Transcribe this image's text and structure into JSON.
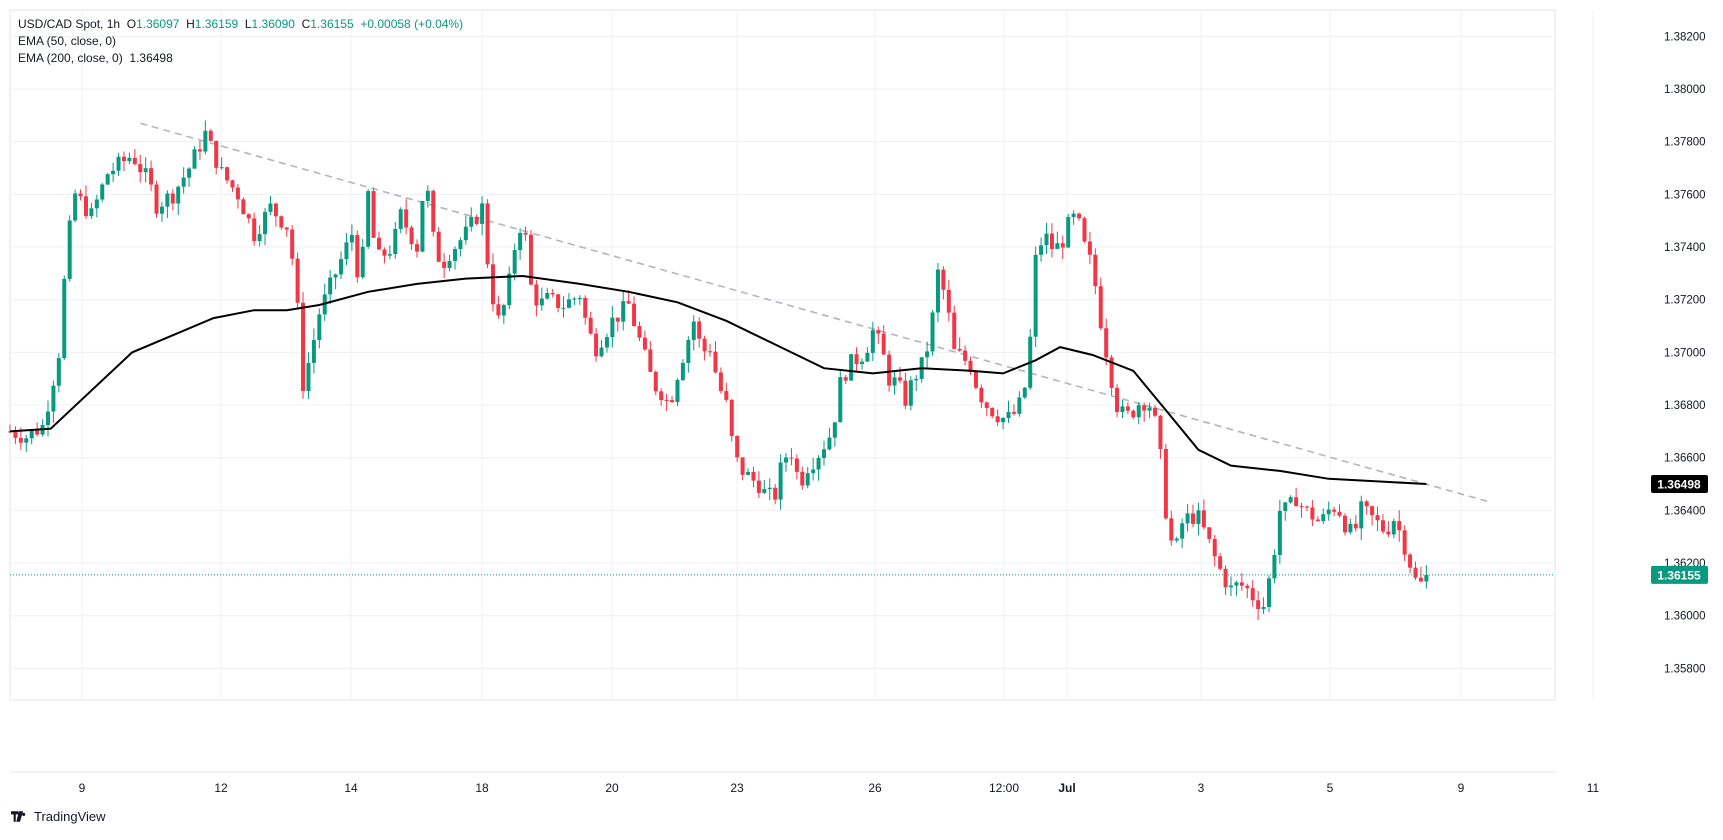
{
  "header": {
    "symbol": "USD/CAD Spot, 1h",
    "ohlc": [
      {
        "label": "O",
        "value": "1.36097"
      },
      {
        "label": "H",
        "value": "1.36159"
      },
      {
        "label": "L",
        "value": "1.36090"
      },
      {
        "label": "C",
        "value": "1.36155"
      }
    ],
    "change": "+0.00058 (+0.04%)",
    "indicators": [
      {
        "label": "EMA (50, close, 0)",
        "value": ""
      },
      {
        "label": "EMA (200, close, 0)",
        "value": "1.36498"
      }
    ]
  },
  "brand": {
    "name": "TradingView",
    "icon": "tradingview-logo-icon"
  },
  "colors": {
    "up": "#089981",
    "down": "#f23645",
    "ema": "#000000",
    "trend": "#b2b5be",
    "grid": "#eef0f3",
    "text": "#131722"
  },
  "chart_data": {
    "type": "candlestick",
    "symbol": "USD/CAD Spot",
    "interval": "1h",
    "ylim": [
      1.3568,
      1.383
    ],
    "y_ticks": [
      "1.38200",
      "1.38000",
      "1.37800",
      "1.37600",
      "1.37400",
      "1.37200",
      "1.37000",
      "1.36800",
      "1.36600",
      "1.36400",
      "1.36200",
      "1.36000",
      "1.35800"
    ],
    "x_ticks": [
      "9",
      "12",
      "14",
      "18",
      "20",
      "23",
      "26",
      "12:00",
      "Jul",
      "3",
      "5",
      "9",
      "11"
    ],
    "price_labels": [
      {
        "name": "EMA 200",
        "value": "1.36498"
      },
      {
        "name": "Last",
        "value": "1.36155"
      }
    ],
    "last_price": 1.36155,
    "price_path": [
      [
        0,
        1.367
      ],
      [
        2,
        1.3668
      ],
      [
        4,
        1.3672
      ],
      [
        5,
        1.3685
      ],
      [
        6,
        1.37
      ],
      [
        7,
        1.374
      ],
      [
        8,
        1.376
      ],
      [
        10,
        1.3752
      ],
      [
        12,
        1.3768
      ],
      [
        15,
        1.3775
      ],
      [
        17,
        1.3765
      ],
      [
        18,
        1.3756
      ],
      [
        20,
        1.376
      ],
      [
        22,
        1.377
      ],
      [
        24,
        1.3783
      ],
      [
        26,
        1.3768
      ],
      [
        28,
        1.376
      ],
      [
        30,
        1.3745
      ],
      [
        32,
        1.3755
      ],
      [
        34,
        1.3748
      ],
      [
        35,
        1.373
      ],
      [
        36,
        1.3688
      ],
      [
        37,
        1.37
      ],
      [
        38,
        1.3715
      ],
      [
        40,
        1.373
      ],
      [
        42,
        1.3745
      ],
      [
        43,
        1.3725
      ],
      [
        44,
        1.376
      ],
      [
        45,
        1.3735
      ],
      [
        47,
        1.374
      ],
      [
        48,
        1.3752
      ],
      [
        50,
        1.374
      ],
      [
        51,
        1.3768
      ],
      [
        52,
        1.3743
      ],
      [
        53,
        1.3733
      ],
      [
        54,
        1.3738
      ],
      [
        56,
        1.3745
      ],
      [
        58,
        1.3755
      ],
      [
        59,
        1.3725
      ],
      [
        60,
        1.3712
      ],
      [
        61,
        1.372
      ],
      [
        62,
        1.374
      ],
      [
        63,
        1.3752
      ],
      [
        64,
        1.3725
      ],
      [
        65,
        1.3718
      ],
      [
        66,
        1.372
      ],
      [
        68,
        1.3718
      ],
      [
        70,
        1.3722
      ],
      [
        71,
        1.3708
      ],
      [
        72,
        1.3702
      ],
      [
        74,
        1.3712
      ],
      [
        76,
        1.3718
      ],
      [
        77,
        1.3708
      ],
      [
        78,
        1.3698
      ],
      [
        79,
        1.3688
      ],
      [
        80,
        1.3685
      ],
      [
        81,
        1.368
      ],
      [
        82,
        1.3692
      ],
      [
        84,
        1.3712
      ],
      [
        85,
        1.37
      ],
      [
        86,
        1.3702
      ],
      [
        87,
        1.3688
      ],
      [
        88,
        1.368
      ],
      [
        89,
        1.366
      ],
      [
        90,
        1.3655
      ],
      [
        91,
        1.3652
      ],
      [
        92,
        1.365
      ],
      [
        93,
        1.3645
      ],
      [
        94,
        1.3646
      ],
      [
        95,
        1.366
      ],
      [
        96,
        1.3662
      ],
      [
        97,
        1.365
      ],
      [
        98,
        1.3657
      ],
      [
        99,
        1.366
      ],
      [
        101,
        1.367
      ],
      [
        102,
        1.3688
      ],
      [
        103,
        1.3695
      ],
      [
        105,
        1.37
      ],
      [
        106,
        1.3708
      ],
      [
        107,
        1.3702
      ],
      [
        108,
        1.369
      ],
      [
        109,
        1.3688
      ],
      [
        110,
        1.3682
      ],
      [
        111,
        1.369
      ],
      [
        112,
        1.3695
      ],
      [
        113,
        1.3705
      ],
      [
        114,
        1.373
      ],
      [
        115,
        1.372
      ],
      [
        116,
        1.37
      ],
      [
        117,
        1.3698
      ],
      [
        118,
        1.3695
      ],
      [
        119,
        1.3685
      ],
      [
        120,
        1.368
      ],
      [
        121,
        1.3677
      ],
      [
        122,
        1.3675
      ],
      [
        123,
        1.3675
      ],
      [
        124,
        1.368
      ],
      [
        125,
        1.369
      ],
      [
        126,
        1.3735
      ],
      [
        127,
        1.3745
      ],
      [
        128,
        1.374
      ],
      [
        129,
        1.374
      ],
      [
        130,
        1.3748
      ],
      [
        131,
        1.3752
      ],
      [
        132,
        1.374
      ],
      [
        133,
        1.3732
      ],
      [
        134,
        1.3712
      ],
      [
        135,
        1.3695
      ],
      [
        136,
        1.368
      ],
      [
        137,
        1.3675
      ],
      [
        138,
        1.3678
      ],
      [
        139,
        1.3682
      ],
      [
        140,
        1.368
      ],
      [
        141,
        1.367
      ],
      [
        142,
        1.364
      ],
      [
        143,
        1.3622
      ],
      [
        144,
        1.3635
      ],
      [
        145,
        1.3638
      ],
      [
        146,
        1.3637
      ],
      [
        147,
        1.363
      ],
      [
        148,
        1.3622
      ],
      [
        149,
        1.3615
      ],
      [
        150,
        1.361
      ],
      [
        151,
        1.3612
      ],
      [
        152,
        1.361
      ],
      [
        153,
        1.3606
      ],
      [
        154,
        1.3604
      ],
      [
        155,
        1.3618
      ],
      [
        156,
        1.364
      ],
      [
        157,
        1.364
      ],
      [
        158,
        1.3645
      ],
      [
        159,
        1.364
      ],
      [
        160,
        1.3638
      ],
      [
        161,
        1.3635
      ],
      [
        162,
        1.364
      ],
      [
        163,
        1.3642
      ],
      [
        164,
        1.3635
      ],
      [
        165,
        1.363
      ],
      [
        166,
        1.364
      ],
      [
        167,
        1.3638
      ],
      [
        168,
        1.3635
      ],
      [
        169,
        1.3632
      ],
      [
        170,
        1.3637
      ],
      [
        171,
        1.363
      ],
      [
        172,
        1.362
      ],
      [
        173,
        1.361
      ],
      [
        174,
        1.3616
      ]
    ],
    "ema200": [
      [
        0,
        1.367
      ],
      [
        5,
        1.3671
      ],
      [
        15,
        1.37
      ],
      [
        25,
        1.3713
      ],
      [
        30,
        1.3716
      ],
      [
        34,
        1.3716
      ],
      [
        38,
        1.3718
      ],
      [
        44,
        1.3723
      ],
      [
        50,
        1.3726
      ],
      [
        56,
        1.3728
      ],
      [
        63,
        1.3729
      ],
      [
        70,
        1.3726
      ],
      [
        76,
        1.3723
      ],
      [
        82,
        1.3719
      ],
      [
        88,
        1.3712
      ],
      [
        94,
        1.3703
      ],
      [
        100,
        1.3694
      ],
      [
        106,
        1.3692
      ],
      [
        112,
        1.3694
      ],
      [
        118,
        1.3693
      ],
      [
        122,
        1.3692
      ],
      [
        126,
        1.3697
      ],
      [
        129,
        1.3702
      ],
      [
        133,
        1.3699
      ],
      [
        138,
        1.3693
      ],
      [
        142,
        1.3678
      ],
      [
        146,
        1.3663
      ],
      [
        150,
        1.3657
      ],
      [
        156,
        1.3655
      ],
      [
        162,
        1.3652
      ],
      [
        168,
        1.3651
      ],
      [
        174,
        1.365
      ]
    ],
    "trendline": [
      [
        16,
        1.3787
      ],
      [
        182,
        1.3643
      ]
    ]
  }
}
